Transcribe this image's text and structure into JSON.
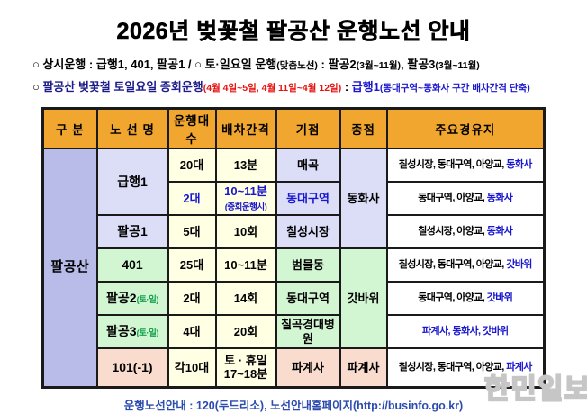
{
  "page": {
    "title": "2026년 벚꽃철 팔공산 운행노선 안내"
  },
  "colors": {
    "header-bg": "#F1A62F",
    "division-bg": "#B9BCE8",
    "lavender-bg": "#DCDEF7",
    "cream-bg": "#FFFFE3",
    "green-bg": "#D2F5D2",
    "pink-bg": "#FADCCE",
    "blue-text": "#1A17CE",
    "green-text": "#12A04B",
    "navy-text": "#1C1C8A",
    "red-text": "#E8110F",
    "footer-text": "#2B4BAE",
    "border": "#1A1A1A"
  },
  "notices": [
    {
      "segments": [
        {
          "t": "○ 상시운행 : 급행1, 401, 팔공1  /  ○ 토·일요일 운행",
          "c": "k"
        },
        {
          "t": "(맞춤노선)",
          "c": "k",
          "sm": true
        },
        {
          "t": " : 팔공2",
          "c": "k"
        },
        {
          "t": "(3월~11월)",
          "c": "k",
          "sm": true
        },
        {
          "t": ", 팔공3",
          "c": "k"
        },
        {
          "t": "(3월~11월)",
          "c": "k",
          "sm": true
        }
      ]
    },
    {
      "segments": [
        {
          "t": "○ ",
          "c": "k"
        },
        {
          "t": "팔공산 벚꽃철 토일요일 증회운행",
          "c": "n"
        },
        {
          "t": "(4월 4일~5일, 4월 11일~4월 12일)",
          "c": "r",
          "sm": true
        },
        {
          "t": " : ",
          "c": "k"
        },
        {
          "t": "급행1",
          "c": "b"
        },
        {
          "t": "(동대구역~동화사 구간 배차간격 단축)",
          "c": "b",
          "sm": true
        }
      ]
    }
  ],
  "table": {
    "columns": [
      {
        "key": "division",
        "label": "구 분"
      },
      {
        "key": "route-name",
        "label": "노 선 명"
      },
      {
        "key": "fleet",
        "label": "운행대수"
      },
      {
        "key": "interval",
        "label": "배차간격"
      },
      {
        "key": "origin",
        "label": "기점"
      },
      {
        "key": "terminus",
        "label": "종점"
      },
      {
        "key": "stops",
        "label": "주요경유지"
      }
    ],
    "rows": [
      [
        {
          "n": "division",
          "rs": 7,
          "bg": "pd",
          "lines": [
            [
              {
                "t": "팔공산",
                "c": "k"
              }
            ]
          ]
        },
        {
          "n": "route-name",
          "rs": 2,
          "bg": "pl",
          "lines": [
            [
              {
                "t": "급행1",
                "c": "k"
              }
            ]
          ]
        },
        {
          "n": "fleet",
          "bg": "cr",
          "lines": [
            [
              {
                "t": "20대",
                "c": "k"
              }
            ]
          ]
        },
        {
          "n": "interval",
          "bg": "cr",
          "lines": [
            [
              {
                "t": "13분",
                "c": "k"
              }
            ]
          ]
        },
        {
          "n": "origin",
          "bg": "pl",
          "lines": [
            [
              {
                "t": "매곡",
                "c": "k"
              }
            ]
          ]
        },
        {
          "n": "terminus",
          "rs": 3,
          "bg": "pl",
          "lines": [
            [
              {
                "t": "동화사",
                "c": "k"
              }
            ]
          ]
        },
        {
          "n": "stops",
          "bg": "wh",
          "lines": [
            [
              {
                "t": "칠성시장, 동대구역, 아양교, ",
                "c": "k"
              },
              {
                "t": "동화사",
                "c": "b"
              }
            ]
          ]
        }
      ],
      [
        {
          "n": "fleet",
          "bg": "cr",
          "lines": [
            [
              {
                "t": "2대",
                "c": "b"
              }
            ]
          ]
        },
        {
          "n": "interval",
          "bg": "cr",
          "lines": [
            [
              {
                "t": "10~11분",
                "c": "b"
              }
            ],
            [
              {
                "t": "(증회운행시)",
                "c": "b",
                "sm": true
              }
            ]
          ]
        },
        {
          "n": "origin",
          "bg": "pl",
          "lines": [
            [
              {
                "t": "동대구역",
                "c": "b"
              }
            ]
          ]
        },
        {
          "n": "stops",
          "bg": "wh",
          "lines": [
            [
              {
                "t": "동대구역, 아양교, ",
                "c": "k"
              },
              {
                "t": "동화사",
                "c": "b"
              }
            ]
          ]
        }
      ],
      [
        {
          "n": "route-name",
          "bg": "pl",
          "lines": [
            [
              {
                "t": "팔공1",
                "c": "k"
              }
            ]
          ]
        },
        {
          "n": "fleet",
          "bg": "cr",
          "lines": [
            [
              {
                "t": "5대",
                "c": "k"
              }
            ]
          ]
        },
        {
          "n": "interval",
          "bg": "cr",
          "lines": [
            [
              {
                "t": "10회",
                "c": "k"
              }
            ]
          ]
        },
        {
          "n": "origin",
          "bg": "pl",
          "lines": [
            [
              {
                "t": "칠성시장",
                "c": "k"
              }
            ]
          ]
        },
        {
          "n": "stops",
          "bg": "wh",
          "lines": [
            [
              {
                "t": "칠성시장, 아양교, ",
                "c": "k"
              },
              {
                "t": "동화사",
                "c": "b"
              }
            ]
          ]
        }
      ],
      [
        {
          "n": "route-name",
          "bg": "gn",
          "lines": [
            [
              {
                "t": "401",
                "c": "k"
              }
            ]
          ]
        },
        {
          "n": "fleet",
          "bg": "cr",
          "lines": [
            [
              {
                "t": "25대",
                "c": "k"
              }
            ]
          ]
        },
        {
          "n": "interval",
          "bg": "cr",
          "lines": [
            [
              {
                "t": "10~11분",
                "c": "k"
              }
            ]
          ]
        },
        {
          "n": "origin",
          "bg": "gn",
          "lines": [
            [
              {
                "t": "범물동",
                "c": "k"
              }
            ]
          ]
        },
        {
          "n": "terminus",
          "rs": 3,
          "bg": "gn",
          "lines": [
            [
              {
                "t": "갓바위",
                "c": "k"
              }
            ]
          ]
        },
        {
          "n": "stops",
          "bg": "wh",
          "lines": [
            [
              {
                "t": "칠성시장, 동대구역, 아양교, ",
                "c": "k"
              },
              {
                "t": "갓바위",
                "c": "b"
              }
            ]
          ]
        }
      ],
      [
        {
          "n": "route-name",
          "bg": "gn",
          "lines": [
            [
              {
                "t": "팔공2",
                "c": "k"
              },
              {
                "t": "(토·일)",
                "c": "g",
                "sm": true
              }
            ]
          ]
        },
        {
          "n": "fleet",
          "bg": "cr",
          "lines": [
            [
              {
                "t": "2대",
                "c": "k"
              }
            ]
          ]
        },
        {
          "n": "interval",
          "bg": "cr",
          "lines": [
            [
              {
                "t": "14회",
                "c": "k"
              }
            ]
          ]
        },
        {
          "n": "origin",
          "bg": "gn",
          "lines": [
            [
              {
                "t": "동대구역",
                "c": "k"
              }
            ]
          ]
        },
        {
          "n": "stops",
          "bg": "wh",
          "lines": [
            [
              {
                "t": "동대구역, 아양교, ",
                "c": "k"
              },
              {
                "t": "갓바위",
                "c": "b"
              }
            ]
          ]
        }
      ],
      [
        {
          "n": "route-name",
          "bg": "gn",
          "lines": [
            [
              {
                "t": "팔공3",
                "c": "k"
              },
              {
                "t": "(토·일)",
                "c": "g",
                "sm": true
              }
            ]
          ]
        },
        {
          "n": "fleet",
          "bg": "cr",
          "lines": [
            [
              {
                "t": "4대",
                "c": "k"
              }
            ]
          ]
        },
        {
          "n": "interval",
          "bg": "cr",
          "lines": [
            [
              {
                "t": "20회",
                "c": "k"
              }
            ]
          ]
        },
        {
          "n": "origin",
          "bg": "gn",
          "lines": [
            [
              {
                "t": "칠곡경대병원",
                "c": "k"
              }
            ]
          ]
        },
        {
          "n": "stops",
          "bg": "wh",
          "lines": [
            [
              {
                "t": "파계사, 동화사, 갓바위",
                "c": "b"
              }
            ]
          ]
        }
      ],
      [
        {
          "n": "route-name",
          "bg": "pk",
          "lines": [
            [
              {
                "t": "101(-1)",
                "c": "k"
              }
            ]
          ]
        },
        {
          "n": "fleet",
          "bg": "cr",
          "lines": [
            [
              {
                "t": "각10대",
                "c": "k"
              }
            ]
          ]
        },
        {
          "n": "interval",
          "bg": "cr",
          "lines": [
            [
              {
                "t": "토 · 휴일",
                "c": "k"
              }
            ],
            [
              {
                "t": "17~18분",
                "c": "k"
              }
            ]
          ]
        },
        {
          "n": "origin",
          "bg": "pk",
          "lines": [
            [
              {
                "t": "파계사",
                "c": "k"
              }
            ]
          ]
        },
        {
          "n": "terminus",
          "bg": "pk",
          "lines": [
            [
              {
                "t": "파계사",
                "c": "k"
              }
            ]
          ]
        },
        {
          "n": "stops",
          "bg": "wh",
          "lines": [
            [
              {
                "t": "칠성시장, 동대구역, 아양교, ",
                "c": "k"
              },
              {
                "t": "파계사",
                "c": "b"
              }
            ]
          ]
        }
      ]
    ]
  },
  "footer": {
    "text": "운행노선안내 : 120(두드리소), 노선안내홈페이지(http://businfo.go.kr)"
  },
  "watermark": {
    "text": "한민일보"
  }
}
